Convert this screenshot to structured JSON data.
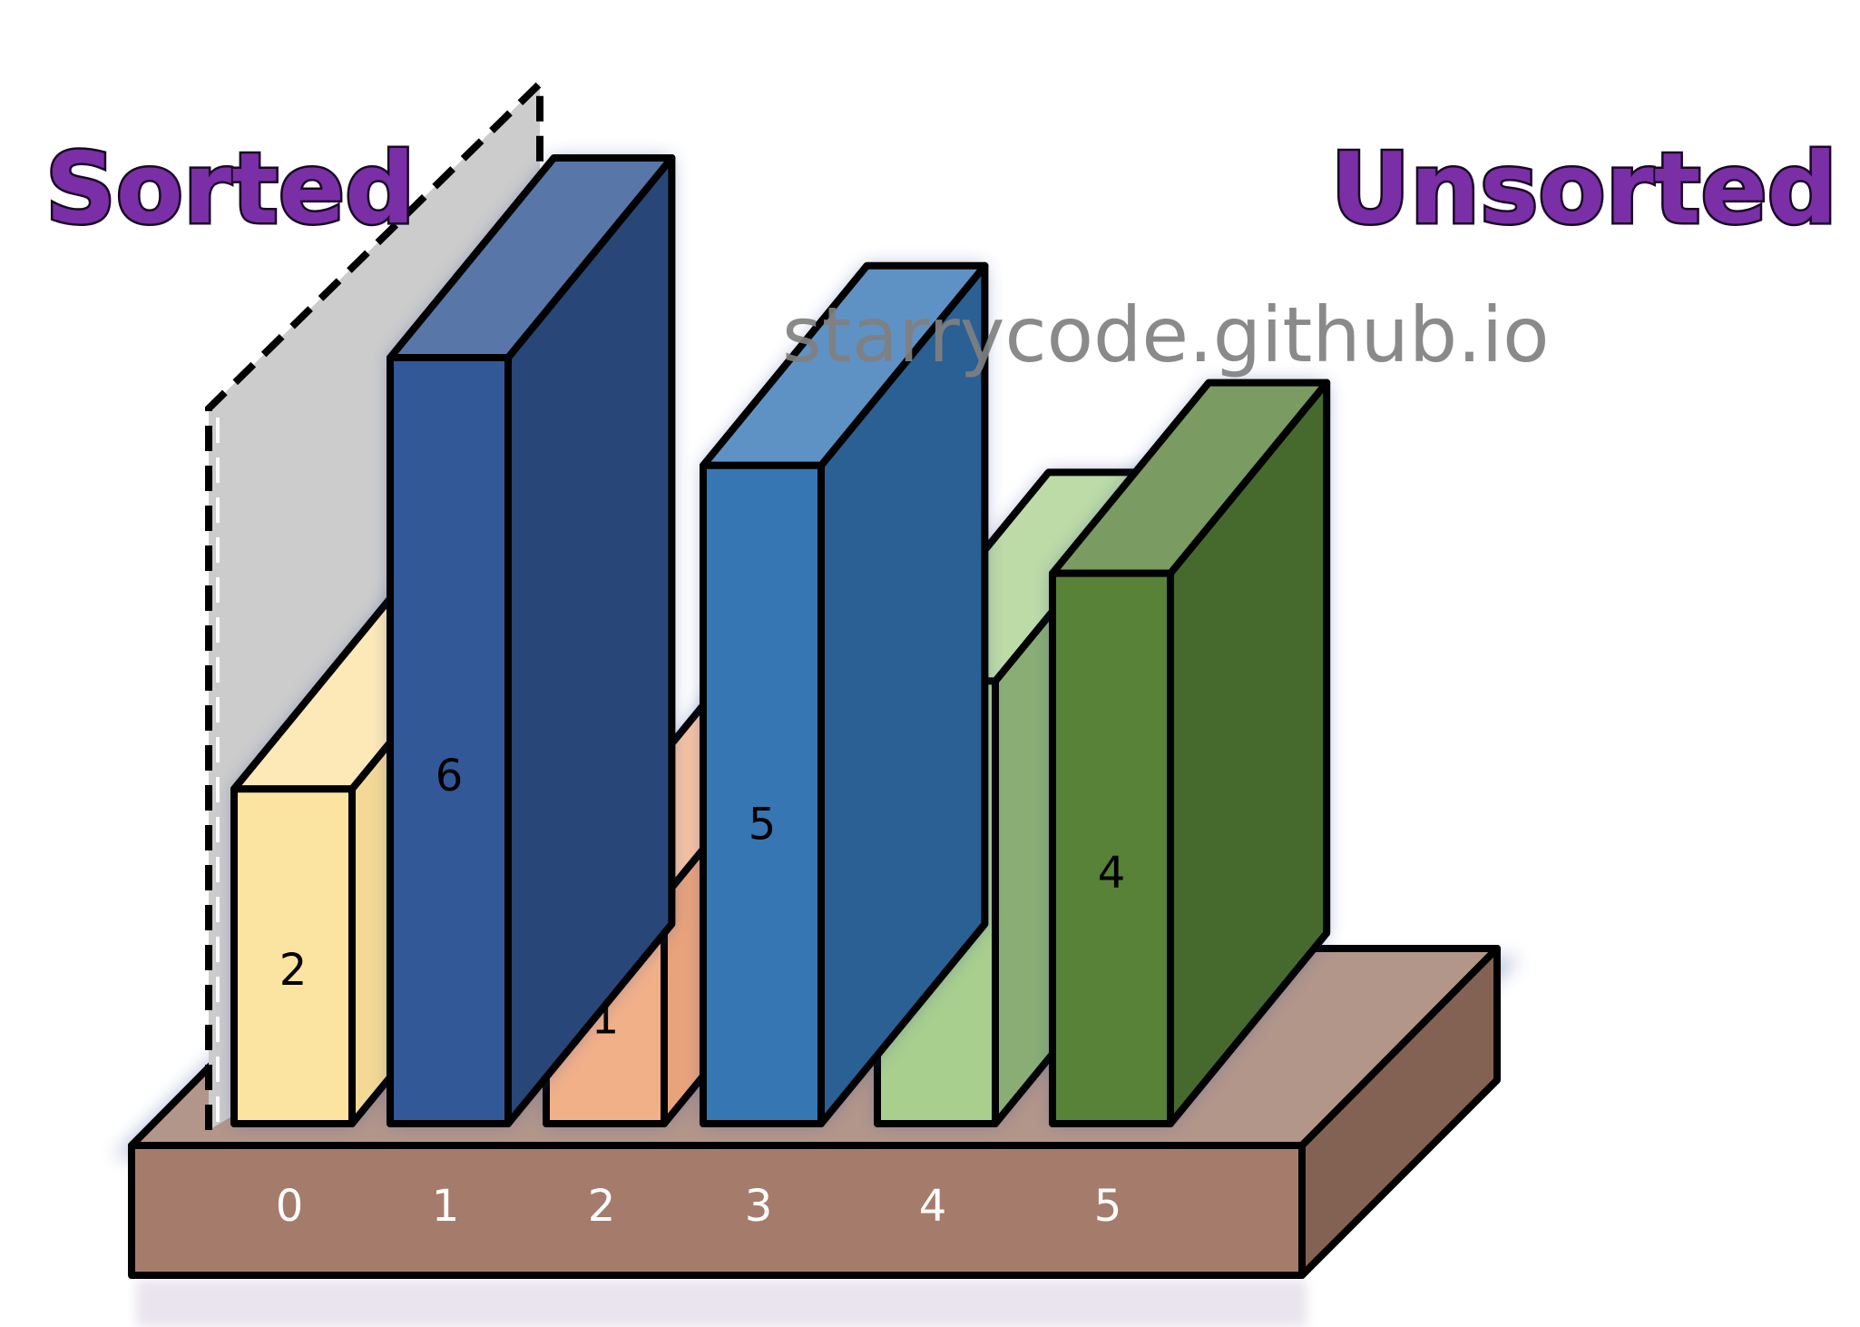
{
  "labels": {
    "sorted": "Sorted",
    "unsorted": "Unsorted",
    "watermark": "starrycode.github.io"
  },
  "array": {
    "values": [
      2,
      6,
      1,
      5,
      3,
      4
    ],
    "indices": [
      "0",
      "1",
      "2",
      "3",
      "4",
      "5"
    ],
    "bar_colors": [
      {
        "front": "#fbe3a1",
        "top": "#fde9b8",
        "side": "#f3d995"
      },
      {
        "front": "#335897",
        "top": "#5877a8",
        "side": "#284677"
      },
      {
        "front": "#f2b089",
        "top": "#f6c3a3",
        "side": "#e9a37b"
      },
      {
        "front": "#3676b3",
        "top": "#5f92c4",
        "side": "#2a6094"
      },
      {
        "front": "#a9cf8e",
        "top": "#bcdba7",
        "side": "#8aad76"
      },
      {
        "front": "#578237",
        "top": "#7a9b61",
        "side": "#466a2e"
      }
    ],
    "base_colors": {
      "front": "#a57c6c",
      "top": "#b3968a",
      "side": "#836254"
    },
    "divider_color": "#cccccc"
  }
}
